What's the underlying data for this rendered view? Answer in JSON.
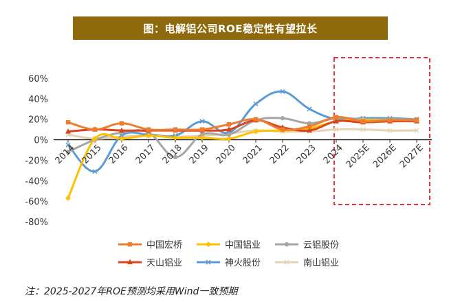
{
  "chart_data": {
    "type": "line",
    "title": "图：电解铝公司ROE稳定性有望拉长",
    "categories": [
      "2014",
      "2015",
      "2016",
      "2017",
      "2018",
      "2019",
      "2020",
      "2021",
      "2022",
      "2023",
      "2024",
      "2025E",
      "2026E",
      "2027E"
    ],
    "ylim": [
      -80,
      60
    ],
    "yticks": [
      "60%",
      "40%",
      "20%",
      "0%",
      "-20%",
      "-40%",
      "-60%",
      "-80%"
    ],
    "ytick_values": [
      60,
      40,
      20,
      0,
      -20,
      -40,
      -60,
      -80
    ],
    "forecast_box": {
      "from": "2024",
      "to": "2027E"
    },
    "series": [
      {
        "name": "中国宏桥",
        "color": "#ed7d31",
        "marker": "square",
        "values": [
          17,
          10,
          16,
          10,
          10,
          10,
          15,
          20,
          10,
          13,
          22,
          18,
          19,
          19
        ]
      },
      {
        "name": "中国铝业",
        "color": "#ffc000",
        "marker": "diamond",
        "values": [
          -57,
          1,
          1,
          4,
          2,
          2,
          1,
          8,
          9,
          11,
          18,
          19,
          19,
          19
        ]
      },
      {
        "name": "云铝股份",
        "color": "#a5a5a5",
        "marker": "circle",
        "values": [
          -12,
          0,
          7,
          7,
          -17,
          5,
          5,
          19,
          21,
          16,
          21,
          20,
          20,
          20
        ]
      },
      {
        "name": "天山铝业",
        "color": "#d9431e",
        "marker": "triangle",
        "values": [
          8,
          10,
          9,
          9,
          9,
          9,
          10,
          19,
          12,
          9,
          18,
          17,
          18,
          18
        ]
      },
      {
        "name": "神火股份",
        "color": "#5b9bd5",
        "marker": "cross",
        "values": [
          -5,
          -31,
          4,
          5,
          4,
          18,
          7,
          35,
          47,
          30,
          20,
          21,
          21,
          20
        ]
      },
      {
        "name": "南山铝业",
        "color": "#e3d3b3",
        "marker": "cross",
        "values": [
          5,
          1,
          3,
          4,
          3,
          4,
          6,
          9,
          8,
          8,
          10,
          10,
          9,
          9
        ]
      }
    ],
    "legend": "bottom"
  },
  "footnote": "注：2025-2027年ROE预测均采用Wind一致预期"
}
